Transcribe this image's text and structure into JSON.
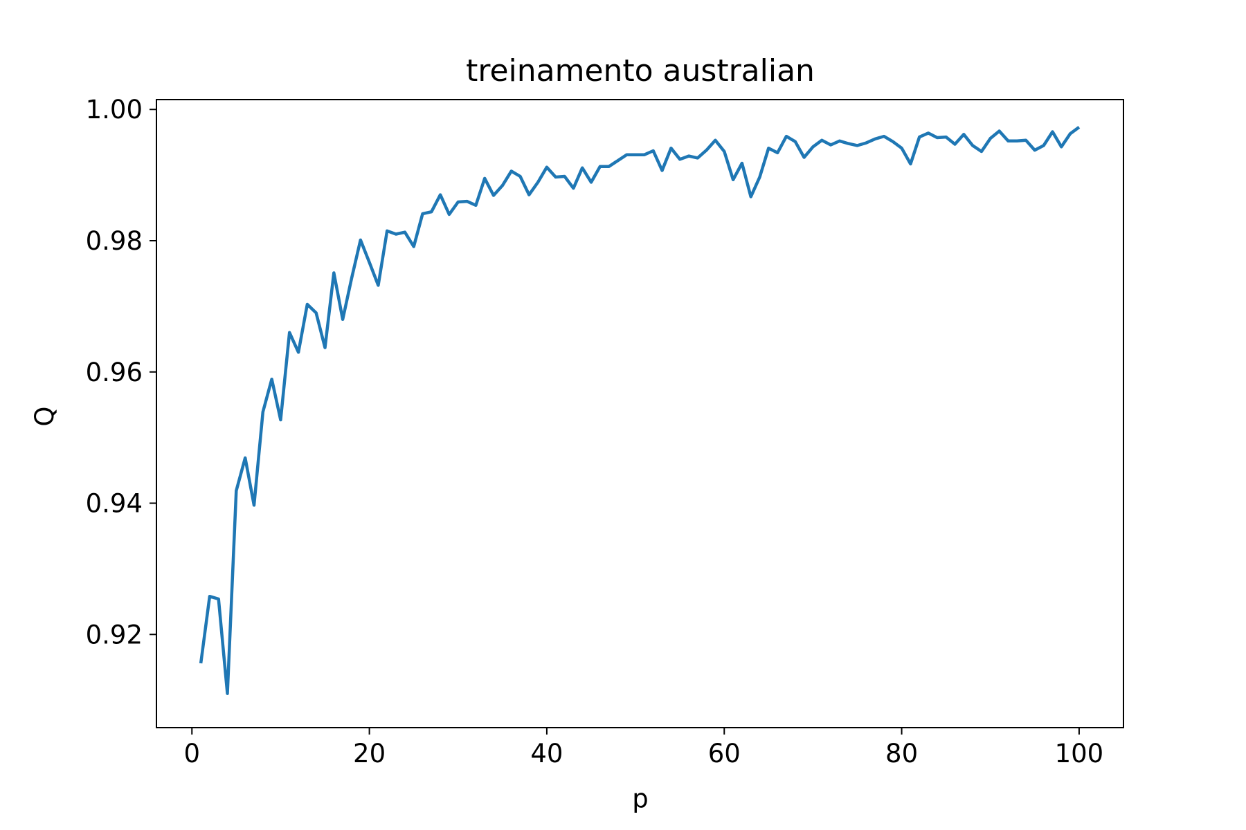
{
  "chart_data": {
    "type": "line",
    "title": "treinamento australian",
    "xlabel": "p",
    "ylabel": "Q",
    "xlim": [
      -4,
      105
    ],
    "ylim": [
      0.9058,
      1.0015
    ],
    "xticks": [
      0,
      20,
      40,
      60,
      80,
      100
    ],
    "xtick_labels": [
      "0",
      "20",
      "40",
      "60",
      "80",
      "100"
    ],
    "yticks": [
      0.92,
      0.94,
      0.96,
      0.98,
      1.0
    ],
    "ytick_labels": [
      "0.92",
      "0.94",
      "0.96",
      "0.98",
      "1.00"
    ],
    "grid": false,
    "colors": {
      "series": "#1f77b4",
      "axes": "#000000",
      "background": "#ffffff"
    },
    "series": [
      {
        "x": [
          1,
          2,
          3,
          4,
          5,
          6,
          7,
          8,
          9,
          10,
          11,
          12,
          13,
          14,
          15,
          16,
          17,
          18,
          19,
          20,
          21,
          22,
          23,
          24,
          25,
          26,
          27,
          28,
          29,
          30,
          31,
          32,
          33,
          34,
          35,
          36,
          37,
          38,
          39,
          40,
          41,
          42,
          43,
          44,
          45,
          46,
          47,
          48,
          49,
          50,
          51,
          52,
          53,
          54,
          55,
          56,
          57,
          58,
          59,
          60,
          61,
          62,
          63,
          64,
          65,
          66,
          67,
          68,
          69,
          70,
          71,
          72,
          73,
          74,
          75,
          76,
          77,
          78,
          79,
          80,
          81,
          82,
          83,
          84,
          85,
          86,
          87,
          88,
          89,
          90,
          91,
          92,
          93,
          94,
          95,
          96,
          97,
          98,
          99,
          100
        ],
        "values": [
          0.9156,
          0.9258,
          0.9254,
          0.911,
          0.9419,
          0.9469,
          0.9397,
          0.9539,
          0.9589,
          0.9527,
          0.966,
          0.963,
          0.9703,
          0.969,
          0.9637,
          0.9751,
          0.968,
          0.9743,
          0.9801,
          0.9767,
          0.9732,
          0.9815,
          0.981,
          0.9813,
          0.9791,
          0.9841,
          0.9844,
          0.987,
          0.984,
          0.9859,
          0.986,
          0.9854,
          0.9895,
          0.9869,
          0.9884,
          0.9906,
          0.9898,
          0.987,
          0.9889,
          0.9912,
          0.9897,
          0.9898,
          0.988,
          0.9911,
          0.9889,
          0.9913,
          0.9913,
          0.9922,
          0.9931,
          0.9931,
          0.9931,
          0.9937,
          0.9907,
          0.9941,
          0.9924,
          0.9929,
          0.9926,
          0.9938,
          0.9953,
          0.9936,
          0.9893,
          0.9918,
          0.9867,
          0.9897,
          0.9941,
          0.9934,
          0.9959,
          0.9951,
          0.9927,
          0.9943,
          0.9953,
          0.9946,
          0.9952,
          0.9948,
          0.9945,
          0.9949,
          0.9955,
          0.9959,
          0.9951,
          0.9941,
          0.9917,
          0.9958,
          0.9964,
          0.9957,
          0.9958,
          0.9947,
          0.9962,
          0.9945,
          0.9936,
          0.9956,
          0.9967,
          0.9952,
          0.9952,
          0.9953,
          0.9938,
          0.9945,
          0.9966,
          0.9943,
          0.9963,
          0.9973
        ]
      }
    ]
  }
}
